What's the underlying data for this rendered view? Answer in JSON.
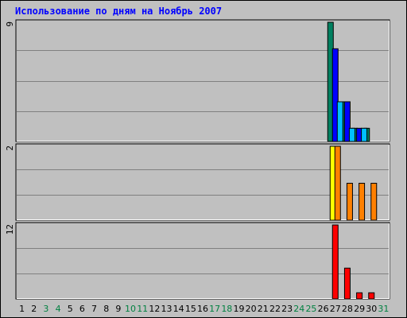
{
  "title": "Использование по дням на Ноябрь 2007",
  "colors": {
    "panel_bg": "#c0c0c0",
    "plot_bg": "#c0c0c0",
    "grid": "#808080",
    "title": "#0000ff",
    "weekday_label": "#000000",
    "weekend_label": "#008040",
    "hits": "#008060",
    "files": "#0000ff",
    "pages": "#00c0ff",
    "visits": "#ffff00",
    "sites": "#ff8000",
    "kbytes": "#ff0000"
  },
  "chart_data": [
    {
      "type": "bar",
      "panel": "top",
      "ymax_label": "9",
      "ylim": [
        0,
        9
      ],
      "categories": [
        "1",
        "2",
        "3",
        "4",
        "5",
        "6",
        "7",
        "8",
        "9",
        "10",
        "11",
        "12",
        "13",
        "14",
        "15",
        "16",
        "17",
        "18",
        "19",
        "20",
        "21",
        "22",
        "23",
        "24",
        "25",
        "26",
        "27",
        "28",
        "29",
        "30",
        "31"
      ],
      "weekend_days": [
        "3",
        "4",
        "10",
        "11",
        "17",
        "18",
        "24",
        "25",
        "31"
      ],
      "series": [
        {
          "color_key": "hits",
          "values": {
            "27": 9,
            "28": 3,
            "29": 1,
            "30": 1
          }
        },
        {
          "color_key": "files",
          "values": {
            "27": 7,
            "28": 3,
            "29": 1,
            "30": 0
          }
        },
        {
          "color_key": "pages",
          "values": {
            "27": 3,
            "28": 1,
            "29": 1,
            "30": 0
          }
        }
      ]
    },
    {
      "type": "bar",
      "panel": "middle",
      "ymax_label": "2",
      "ylim": [
        0,
        2
      ],
      "series": [
        {
          "color_key": "visits",
          "values": {
            "27": 2,
            "28": 0,
            "29": 0,
            "30": 0
          }
        },
        {
          "color_key": "sites",
          "values": {
            "27": 2,
            "28": 1,
            "29": 1,
            "30": 1
          }
        }
      ]
    },
    {
      "type": "bar",
      "panel": "bottom",
      "ymax_label": "12",
      "ylim": [
        0,
        12
      ],
      "series": [
        {
          "color_key": "kbytes",
          "values": {
            "27": 12,
            "28": 5,
            "29": 1,
            "30": 1
          }
        }
      ]
    }
  ]
}
